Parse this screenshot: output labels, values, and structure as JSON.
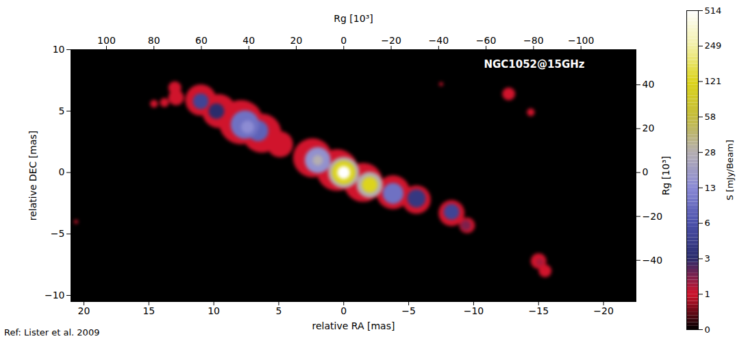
{
  "chart_data": {
    "type": "image",
    "title": "NGC1052@15GHz",
    "xlabel": "relative RA [mas]",
    "ylabel": "relative DEC [mas]",
    "x2label": "Rg [10³]",
    "y2label": "Rg [10³]",
    "reference": "Ref: Lister et al. 2009",
    "xlim": [
      21,
      -22.5
    ],
    "xticks": [
      20,
      15,
      10,
      5,
      0,
      -5,
      -10,
      -15,
      -20
    ],
    "ylim": [
      -10.5,
      10
    ],
    "yticks": [
      -10,
      -5,
      0,
      5,
      10
    ],
    "x2lim": [
      115,
      -123.2
    ],
    "x2ticks": [
      100,
      80,
      60,
      40,
      20,
      0,
      -20,
      -40,
      -60,
      -80,
      -100
    ],
    "y2lim": [
      -58.8,
      56
    ],
    "y2ticks": [
      -40,
      -20,
      0,
      20,
      40
    ],
    "components": [
      {
        "ra": 11.0,
        "dec": 5.9,
        "flux": 1,
        "size": 1.2
      },
      {
        "ra": 9.6,
        "dec": 5.0,
        "flux": 1,
        "size": 1.3
      },
      {
        "ra": 7.9,
        "dec": 4.1,
        "flux": 1,
        "size": 1.7
      },
      {
        "ra": 6.3,
        "dec": 3.2,
        "flux": 1,
        "size": 1.5
      },
      {
        "ra": 4.9,
        "dec": 2.3,
        "flux": 1,
        "size": 1.0
      },
      {
        "ra": 2.4,
        "dec": 1.2,
        "flux": 1,
        "size": 1.5
      },
      {
        "ra": 0.5,
        "dec": 0.2,
        "flux": 1,
        "size": 1.6
      },
      {
        "ra": -1.5,
        "dec": -0.8,
        "flux": 1,
        "size": 1.5
      },
      {
        "ra": -3.8,
        "dec": -1.6,
        "flux": 1,
        "size": 1.3
      },
      {
        "ra": -5.6,
        "dec": -2.2,
        "flux": 1,
        "size": 1.1
      },
      {
        "ra": -8.3,
        "dec": -3.3,
        "flux": 1,
        "size": 1.0
      },
      {
        "ra": -9.5,
        "dec": -4.3,
        "flux": 1,
        "size": 0.6
      },
      {
        "ra": -15.0,
        "dec": -7.2,
        "flux": 1,
        "size": 0.6
      },
      {
        "ra": -15.5,
        "dec": -8.0,
        "flux": 1,
        "size": 0.5
      },
      {
        "ra": -12.7,
        "dec": 6.4,
        "flux": 1,
        "size": 0.5
      },
      {
        "ra": -14.4,
        "dec": 4.9,
        "flux": 1,
        "size": 0.3
      },
      {
        "ra": 13.0,
        "dec": 6.9,
        "flux": 1,
        "size": 0.5
      },
      {
        "ra": 12.9,
        "dec": 6.1,
        "flux": 1,
        "size": 0.6
      },
      {
        "ra": 13.8,
        "dec": 5.7,
        "flux": 1,
        "size": 0.35
      },
      {
        "ra": 14.6,
        "dec": 5.6,
        "flux": 1,
        "size": 0.3
      },
      {
        "ra": -7.5,
        "dec": 7.2,
        "flux": 1,
        "size": 0.15
      },
      {
        "ra": 20.6,
        "dec": -4.0,
        "flux": 1,
        "size": 0.15
      },
      {
        "ra": 11.0,
        "dec": 5.8,
        "flux": 5,
        "size": 0.6
      },
      {
        "ra": 9.8,
        "dec": 5.0,
        "flux": 3,
        "size": 0.6
      },
      {
        "ra": 7.6,
        "dec": 3.9,
        "flux": 10,
        "size": 1.1
      },
      {
        "ra": 6.6,
        "dec": 3.4,
        "flux": 8,
        "size": 0.8
      },
      {
        "ra": 7.4,
        "dec": 3.7,
        "flux": 14,
        "size": 0.5
      },
      {
        "ra": 2.0,
        "dec": 1.0,
        "flux": 16,
        "size": 1.0
      },
      {
        "ra": 2.0,
        "dec": 1.0,
        "flux": 28,
        "size": 0.4
      },
      {
        "ra": 0,
        "dec": 0,
        "flux": 28,
        "size": 1.2
      },
      {
        "ra": 0,
        "dec": 0,
        "flux": 121,
        "size": 0.9
      },
      {
        "ra": 0,
        "dec": 0,
        "flux": 514,
        "size": 0.5
      },
      {
        "ra": -2.0,
        "dec": -1.0,
        "flux": 28,
        "size": 1.0
      },
      {
        "ra": -2.0,
        "dec": -1.0,
        "flux": 121,
        "size": 0.6
      },
      {
        "ra": -3.8,
        "dec": -1.7,
        "flux": 10,
        "size": 0.8
      },
      {
        "ra": -5.6,
        "dec": -2.1,
        "flux": 4,
        "size": 0.7
      },
      {
        "ra": -8.3,
        "dec": -3.2,
        "flux": 5,
        "size": 0.6
      },
      {
        "ra": -9.4,
        "dec": -4.3,
        "flux": 2,
        "size": 0.4
      },
      {
        "ra": -15.1,
        "dec": -7.3,
        "flux": 1.5,
        "size": 0.3
      }
    ],
    "colorbar": {
      "label": "S [mJy/Beam]",
      "ticks": [
        0,
        1,
        3,
        6,
        13,
        28,
        58,
        121,
        249,
        514
      ],
      "colors": [
        "#000000",
        "#d0142c",
        "#2a2c6c",
        "#4b50aa",
        "#8a8ad6",
        "#b4aeb0",
        "#c4bc3c",
        "#dcd41c",
        "#f2f0a8",
        "#ffffff"
      ]
    }
  }
}
